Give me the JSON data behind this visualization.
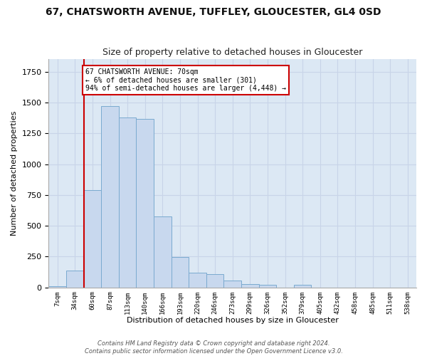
{
  "title": "67, CHATSWORTH AVENUE, TUFFLEY, GLOUCESTER, GL4 0SD",
  "subtitle": "Size of property relative to detached houses in Gloucester",
  "xlabel": "Distribution of detached houses by size in Gloucester",
  "ylabel": "Number of detached properties",
  "bin_labels": [
    "7sqm",
    "34sqm",
    "60sqm",
    "87sqm",
    "113sqm",
    "140sqm",
    "166sqm",
    "193sqm",
    "220sqm",
    "246sqm",
    "273sqm",
    "299sqm",
    "326sqm",
    "352sqm",
    "379sqm",
    "405sqm",
    "432sqm",
    "458sqm",
    "485sqm",
    "511sqm",
    "538sqm"
  ],
  "bar_values": [
    10,
    135,
    790,
    1470,
    1380,
    1370,
    575,
    245,
    120,
    110,
    55,
    30,
    20,
    0,
    20,
    0,
    0,
    0,
    0,
    0,
    0
  ],
  "bar_color": "#c8d8ee",
  "bar_edge_color": "#7aaad0",
  "grid_color": "#c8d4e8",
  "background_color": "#dce8f4",
  "fig_background": "#ffffff",
  "vline_color": "#cc0000",
  "annotation_text": "67 CHATSWORTH AVENUE: 70sqm\n← 6% of detached houses are smaller (301)\n94% of semi-detached houses are larger (4,448) →",
  "annotation_box_color": "#ffffff",
  "annotation_box_edge": "#cc0000",
  "footer_text": "Contains HM Land Registry data © Crown copyright and database right 2024.\nContains public sector information licensed under the Open Government Licence v3.0.",
  "ylim": [
    0,
    1850
  ],
  "title_fontsize": 10,
  "subtitle_fontsize": 9,
  "xlabel_fontsize": 8,
  "ylabel_fontsize": 8
}
